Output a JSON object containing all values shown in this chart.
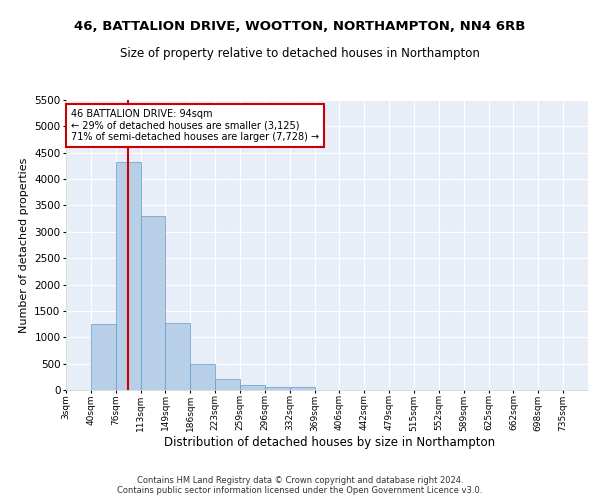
{
  "title": "46, BATTALION DRIVE, WOOTTON, NORTHAMPTON, NN4 6RB",
  "subtitle": "Size of property relative to detached houses in Northampton",
  "xlabel": "Distribution of detached houses by size in Northampton",
  "ylabel": "Number of detached properties",
  "footer_line1": "Contains HM Land Registry data © Crown copyright and database right 2024.",
  "footer_line2": "Contains public sector information licensed under the Open Government Licence v3.0.",
  "bin_labels": [
    "3sqm",
    "40sqm",
    "76sqm",
    "113sqm",
    "149sqm",
    "186sqm",
    "223sqm",
    "259sqm",
    "296sqm",
    "332sqm",
    "369sqm",
    "406sqm",
    "442sqm",
    "479sqm",
    "515sqm",
    "552sqm",
    "589sqm",
    "625sqm",
    "662sqm",
    "698sqm",
    "735sqm"
  ],
  "bar_values": [
    0,
    1260,
    4330,
    3300,
    1280,
    490,
    215,
    90,
    55,
    55,
    0,
    0,
    0,
    0,
    0,
    0,
    0,
    0,
    0,
    0,
    0
  ],
  "bar_color": "#b8cfe8",
  "bar_edge_color": "#6699cc",
  "background_color": "#e8eef8",
  "grid_color": "#ffffff",
  "annotation_text": "46 BATTALION DRIVE: 94sqm\n← 29% of detached houses are smaller (3,125)\n71% of semi-detached houses are larger (7,728) →",
  "annotation_box_color": "#ffffff",
  "annotation_box_edge_color": "#cc0000",
  "red_line_color": "#cc0000",
  "ylim": [
    0,
    5500
  ],
  "yticks": [
    0,
    500,
    1000,
    1500,
    2000,
    2500,
    3000,
    3500,
    4000,
    4500,
    5000,
    5500
  ],
  "fig_bg": "#ffffff"
}
